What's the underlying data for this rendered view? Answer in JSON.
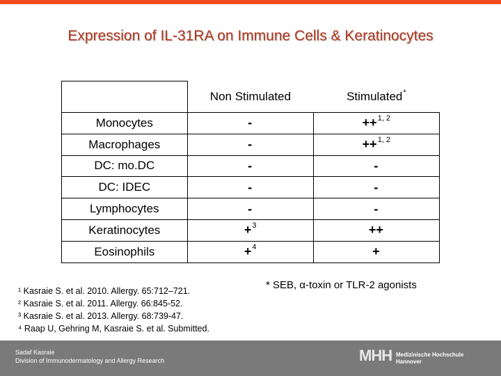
{
  "slide": {
    "title": "Expression of IL-31RA on Immune Cells & Keratinocytes"
  },
  "table": {
    "headers": [
      "",
      "Non Stimulated",
      "Stimulated"
    ],
    "header_sup": "*",
    "rows": [
      {
        "cell": "Monocytes",
        "non_stimulated": "-",
        "non_sup": "",
        "stimulated": "++",
        "stim_sup": "1, 2"
      },
      {
        "cell": "Macrophages",
        "non_stimulated": "-",
        "non_sup": "",
        "stimulated": "++",
        "stim_sup": "1, 2"
      },
      {
        "cell": "DC: mo.DC",
        "non_stimulated": "-",
        "non_sup": "",
        "stimulated": "-",
        "stim_sup": ""
      },
      {
        "cell": "DC: IDEC",
        "non_stimulated": "-",
        "non_sup": "",
        "stimulated": "-",
        "stim_sup": ""
      },
      {
        "cell": "Lymphocytes",
        "non_stimulated": "-",
        "non_sup": "",
        "stimulated": "-",
        "stim_sup": ""
      },
      {
        "cell": "Keratinocytes",
        "non_stimulated": "+",
        "non_sup": "3",
        "stimulated": "++",
        "stim_sup": ""
      },
      {
        "cell": "Eosinophils",
        "non_stimulated": "+",
        "non_sup": "4",
        "stimulated": "+",
        "stim_sup": ""
      }
    ]
  },
  "footnote": "* SEB, α-toxin or TLR-2 agonists",
  "references": [
    "¹ Kasraie S. et al. 2010. Allergy. 65:712–721.",
    "² Kasraie S. et al. 2011. Allergy. 66:845-52.",
    "³ Kasraie S. et al. 2013. Allergy. 68:739-47.",
    "⁴ Raap U, Gehring M,  Kasraie S. et al. Submitted."
  ],
  "footer": {
    "author": "Sadaf Kasraie",
    "department": "Division of Immunodermatology and Allergy Research",
    "logo_mark": "MHH",
    "logo_line1": "Medizinische Hochschule",
    "logo_line2": "Hannover"
  },
  "colors": {
    "accent": "#f04a23",
    "title": "#b1361e",
    "footer_bg": "#7a7a7a"
  }
}
